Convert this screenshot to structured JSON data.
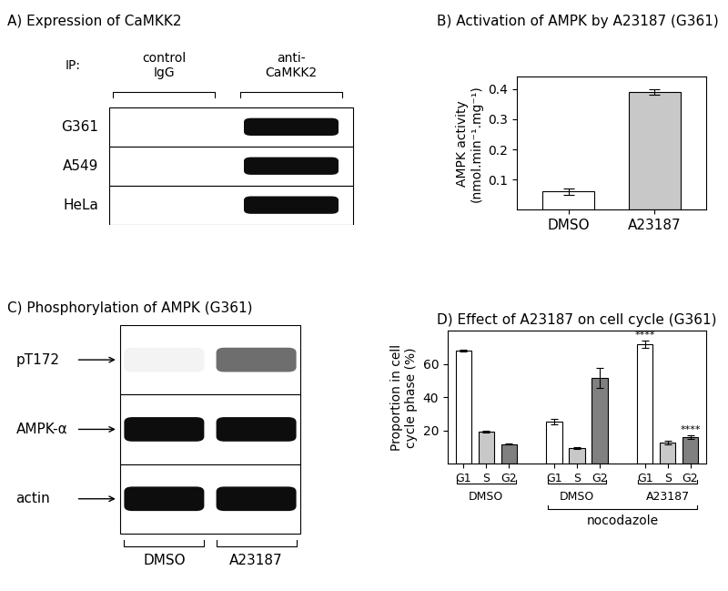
{
  "blots": [
    {
      "title": "A) Expression of CaMKK2",
      "header": "IP:",
      "lanes": [
        "control\nIgG",
        "anti-\nCaMKK2"
      ],
      "rows": [
        {
          "label": "G361",
          "band_intensity": [
            0,
            1
          ]
        },
        {
          "label": "A549",
          "band_intensity": [
            0,
            1
          ]
        },
        {
          "label": "HeLa",
          "band_intensity": [
            0,
            1
          ]
        }
      ]
    },
    {
      "title": "C) Phosphorylation of AMPK (G361)",
      "lanes": [
        "DMSO",
        "A23187"
      ],
      "rows": [
        {
          "label": "pT172",
          "band_intensity": [
            0.05,
            0.6
          ]
        },
        {
          "label": "AMPK-α",
          "band_intensity": [
            1,
            1
          ]
        },
        {
          "label": "actin",
          "band_intensity": [
            1,
            1
          ]
        }
      ]
    }
  ],
  "chart_data": [
    {
      "type": "bar",
      "title": "B) Activation of AMPK by A23187 (G361)",
      "categories": [
        "DMSO",
        "A23187"
      ],
      "values": [
        0.06,
        0.39
      ],
      "errors": [
        0.01,
        0.008
      ],
      "colors": [
        "#ffffff",
        "#c8c8c8"
      ],
      "ylabel": "AMPK activity\n(nmol.min⁻¹.mg⁻¹)",
      "ylim": [
        0,
        0.44
      ],
      "yticks": [
        0.1,
        0.2,
        0.3,
        0.4
      ]
    },
    {
      "type": "bar",
      "title": "D) Effect of A23187 on cell cycle (G361)",
      "categories": [
        "G1",
        "S",
        "G2"
      ],
      "colors": [
        "#ffffff",
        "#c8c8c8",
        "#808080"
      ],
      "groups": [
        {
          "name": "DMSO",
          "values": [
            68,
            19.5,
            12
          ],
          "errors": [
            0.5,
            0.7,
            0.3
          ]
        },
        {
          "name": "DMSO",
          "values": [
            25.5,
            9.5,
            52
          ],
          "errors": [
            1.5,
            0.5,
            6
          ],
          "bracket": "nocodazole"
        },
        {
          "name": "A23187",
          "values": [
            72,
            13,
            16
          ],
          "errors": [
            2,
            1.2,
            1.2
          ],
          "bracket": "nocodazole",
          "marks": {
            "G1": "****",
            "G2": "****"
          }
        }
      ],
      "ylabel": "Proportion in cell\ncycle phase (%)",
      "ylim": [
        0,
        80
      ],
      "yticks": [
        20,
        40,
        60
      ]
    }
  ]
}
